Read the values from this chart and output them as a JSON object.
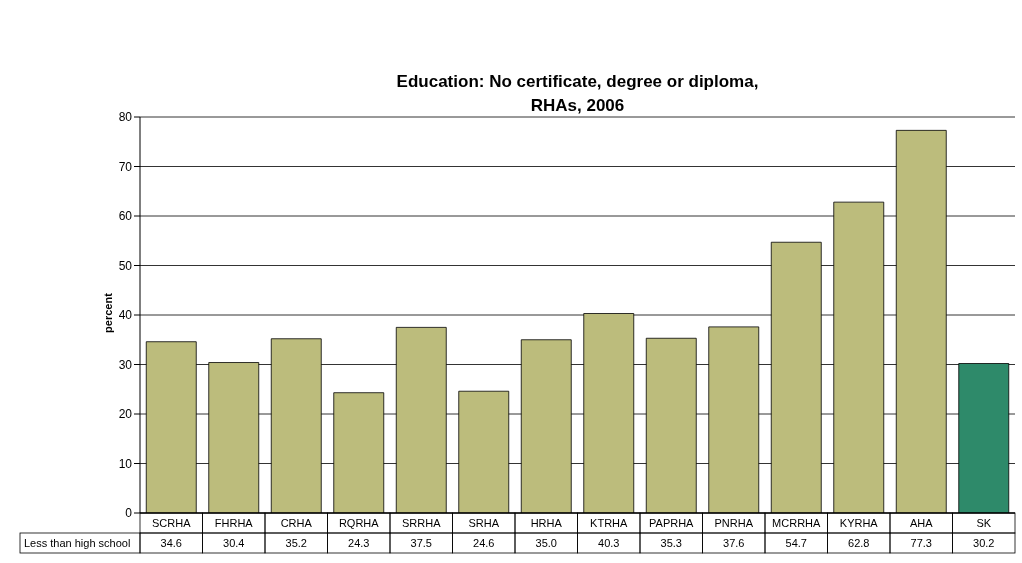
{
  "chart_data": {
    "type": "bar",
    "title": "Education: No certificate, degree or diploma,\nRHAs, 2006",
    "ylabel": "percent",
    "categories": [
      "SCRHA",
      "FHRHA",
      "CRHA",
      "RQRHA",
      "SRRHA",
      "SRHA",
      "HRHA",
      "KTRHA",
      "PAPRHA",
      "PNRHA",
      "MCRRHA",
      "KYRHA",
      "AHA",
      "SK"
    ],
    "series": [
      {
        "name": "Less than high school",
        "values": [
          34.6,
          30.4,
          35.2,
          24.3,
          37.5,
          24.6,
          35.0,
          40.3,
          35.3,
          37.6,
          54.7,
          62.8,
          77.3,
          30.2
        ],
        "value_labels": [
          "34.6",
          "30.4",
          "35.2",
          "24.3",
          "37.5",
          "24.6",
          "35.0",
          "40.3",
          "35.3",
          "37.6",
          "54.7",
          "62.8",
          "77.3",
          "30.2"
        ],
        "colors": [
          "#bcbc7c",
          "#bcbc7c",
          "#bcbc7c",
          "#bcbc7c",
          "#bcbc7c",
          "#bcbc7c",
          "#bcbc7c",
          "#bcbc7c",
          "#bcbc7c",
          "#bcbc7c",
          "#bcbc7c",
          "#bcbc7c",
          "#bcbc7c",
          "#2e8a6a"
        ]
      }
    ],
    "ylim": [
      0,
      80
    ],
    "yticks": [
      0,
      10,
      20,
      30,
      40,
      50,
      60,
      70,
      80
    ],
    "grid": "y"
  }
}
